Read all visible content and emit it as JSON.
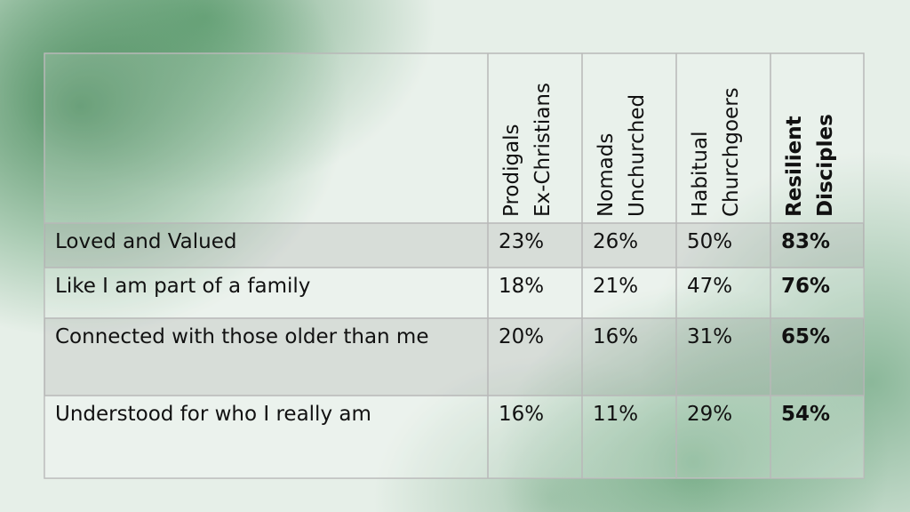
{
  "table": {
    "columns": [
      {
        "lines": [
          "Prodigals",
          "Ex-Christians"
        ],
        "bold": false
      },
      {
        "lines": [
          "Nomads",
          "Unchurched"
        ],
        "bold": false
      },
      {
        "lines": [
          "Habitual",
          "Churchgoers"
        ],
        "bold": false
      },
      {
        "lines": [
          "Resilient",
          "Disciples"
        ],
        "bold": true
      }
    ],
    "rows": [
      {
        "label": "Loved and Valued",
        "values": [
          "23%",
          "26%",
          "50%",
          "83%"
        ]
      },
      {
        "label": "Like I am part of a family",
        "values": [
          "18%",
          "21%",
          "47%",
          "76%"
        ]
      },
      {
        "label": "Connected with those older than me",
        "values": [
          "20%",
          "16%",
          "31%",
          "65%"
        ]
      },
      {
        "label": "Understood for who I really am",
        "values": [
          "16%",
          "11%",
          "29%",
          "54%"
        ]
      }
    ]
  }
}
